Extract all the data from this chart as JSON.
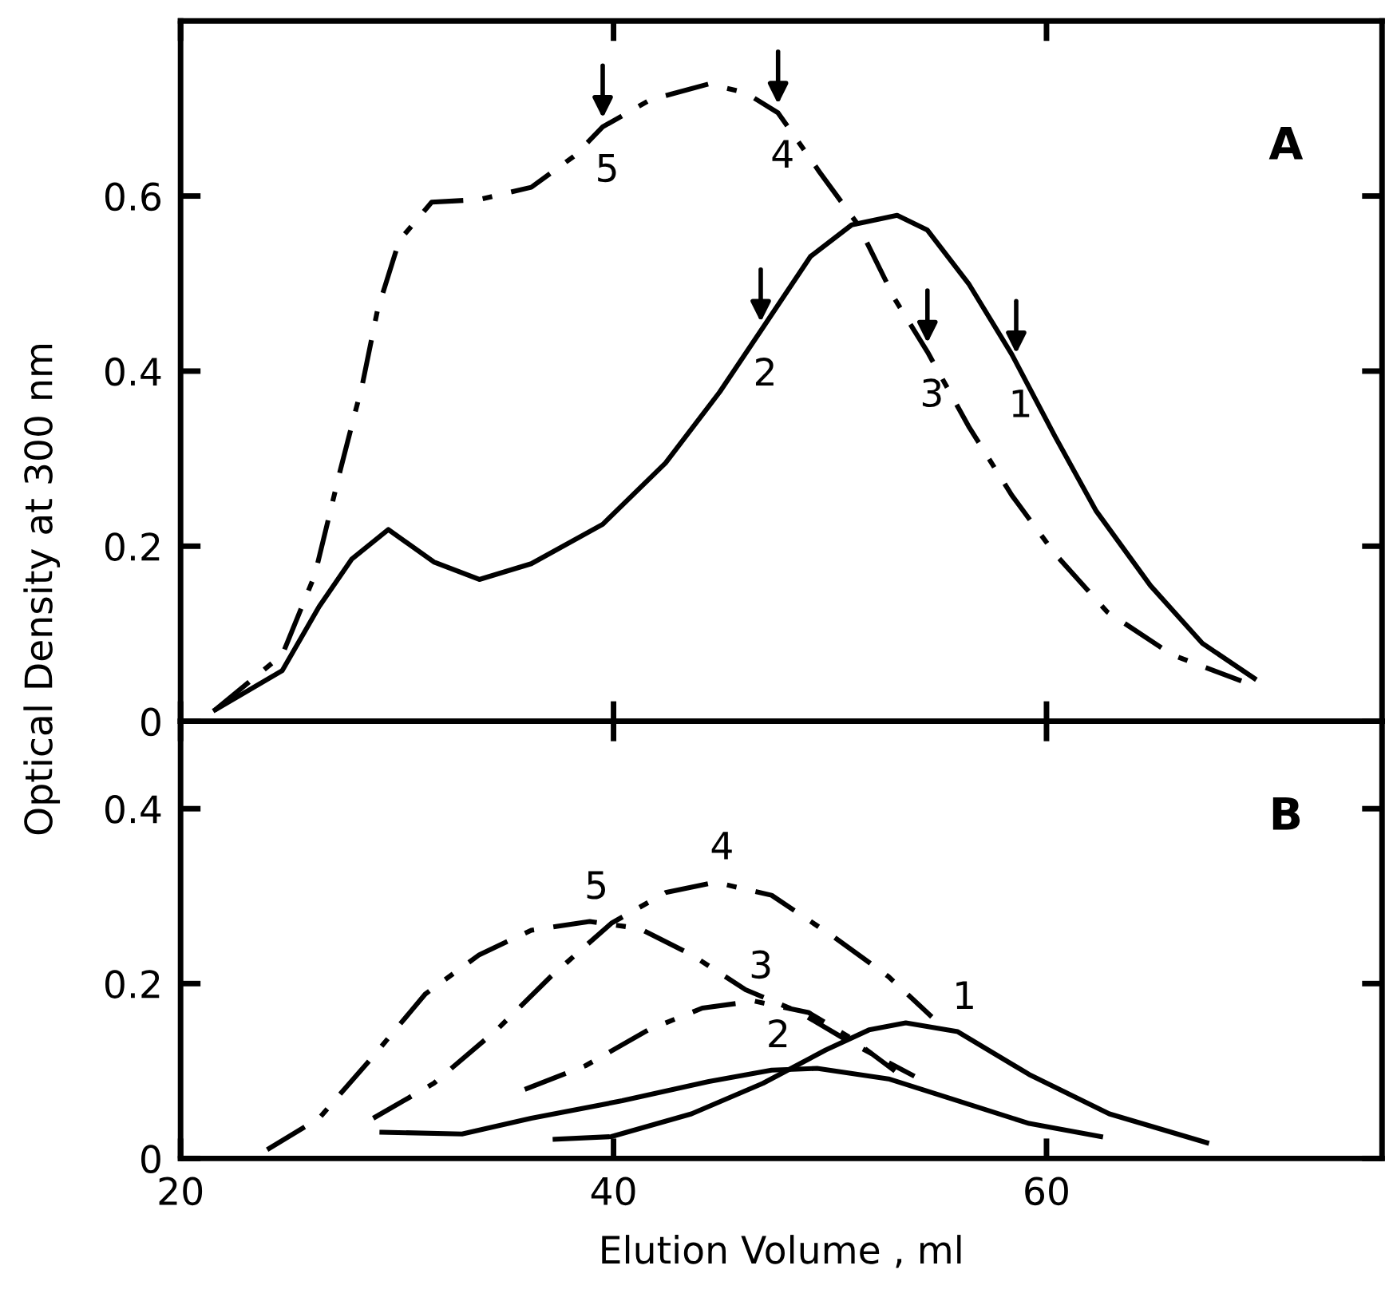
{
  "chart_data": [
    {
      "type": "line",
      "ylabel": "Optical Density at 300 nm",
      "xlim": [
        20,
        75.5
      ],
      "ylim": [
        0,
        0.8
      ],
      "xticks": [
        20,
        40,
        60
      ],
      "yticks": [
        0,
        0.2,
        0.4,
        0.6
      ],
      "tick_labels": "y",
      "grid": false,
      "series": [
        {
          "color": "#000000",
          "line_style": "solid",
          "x": [
            21.6,
            24.7,
            26.4,
            27.9,
            29.6,
            31.7,
            33.8,
            36.2,
            39.5,
            42.4,
            44.9,
            46.8,
            49.1,
            51.0,
            53.1,
            54.5,
            56.4,
            58.4,
            60.4,
            62.3,
            64.8,
            67.2,
            69.6
          ],
          "values": [
            0.013,
            0.058,
            0.131,
            0.185,
            0.219,
            0.182,
            0.162,
            0.18,
            0.225,
            0.295,
            0.376,
            0.446,
            0.531,
            0.567,
            0.578,
            0.561,
            0.5,
            0.419,
            0.325,
            0.24,
            0.155,
            0.089,
            0.049
          ]
        },
        {
          "color": "#000000",
          "line_style": "dashdot",
          "x": [
            21.6,
            24.7,
            26.2,
            27.4,
            28.4,
            29.1,
            30.1,
            31.6,
            33.8,
            36.2,
            38.2,
            39.5,
            41.7,
            44.4,
            46.1,
            47.6,
            49.5,
            51.3,
            53.0,
            54.5,
            56.4,
            58.4,
            60.4,
            62.8,
            65.8,
            69.0
          ],
          "values": [
            0.013,
            0.076,
            0.167,
            0.289,
            0.385,
            0.47,
            0.549,
            0.593,
            0.596,
            0.61,
            0.646,
            0.679,
            0.71,
            0.728,
            0.718,
            0.695,
            0.628,
            0.567,
            0.482,
            0.422,
            0.337,
            0.258,
            0.191,
            0.125,
            0.076,
            0.046
          ]
        }
      ],
      "annotations": [
        "A",
        {
          "text": "5",
          "x": 39.5,
          "y": 0.679
        },
        {
          "text": "4",
          "x": 47.6,
          "y": 0.695
        },
        {
          "text": "2",
          "x": 46.8,
          "y": 0.446
        },
        {
          "text": "3",
          "x": 54.5,
          "y": 0.422
        },
        {
          "text": "1",
          "x": 58.6,
          "y": 0.41
        }
      ]
    },
    {
      "type": "line",
      "xlabel": "Elution Volume , ml",
      "xlim": [
        20,
        75.5
      ],
      "ylim": [
        0,
        0.5
      ],
      "xticks": [
        20,
        40,
        60
      ],
      "yticks": [
        0,
        0.2,
        0.4
      ],
      "grid": false,
      "series": [
        {
          "color": "#000000",
          "line_style": "solid",
          "x": [
            37.3,
            39.9,
            43.6,
            46.9,
            49.8,
            51.8,
            53.5,
            55.9,
            59.2,
            62.9,
            67.4
          ],
          "values": [
            0.022,
            0.025,
            0.051,
            0.086,
            0.124,
            0.147,
            0.155,
            0.145,
            0.096,
            0.051,
            0.018
          ]
        },
        {
          "color": "#000000",
          "line_style": "solid",
          "x": [
            29.3,
            33.0,
            36.2,
            40.4,
            44.4,
            47.3,
            49.4,
            52.7,
            55.9,
            59.2,
            62.5
          ],
          "values": [
            0.03,
            0.028,
            0.046,
            0.066,
            0.088,
            0.101,
            0.103,
            0.091,
            0.066,
            0.04,
            0.025
          ]
        },
        {
          "color": "#000000",
          "line_style": "dashdot",
          "x": [
            35.9,
            38.7,
            41.6,
            44.1,
            46.5,
            49.0,
            51.0,
            53.0
          ],
          "values": [
            0.079,
            0.106,
            0.147,
            0.172,
            0.18,
            0.167,
            0.137,
            0.1
          ]
        },
        {
          "color": "#000000",
          "line_style": "dashdot",
          "x": [
            28.9,
            31.7,
            34.6,
            37.1,
            39.9,
            42.4,
            44.7,
            47.3,
            50.2,
            52.7,
            54.7
          ],
          "values": [
            0.046,
            0.086,
            0.147,
            0.208,
            0.269,
            0.304,
            0.316,
            0.301,
            0.253,
            0.208,
            0.162
          ]
        },
        {
          "color": "#000000",
          "line_style": "dashdot",
          "x": [
            24.0,
            26.4,
            28.9,
            31.3,
            33.8,
            36.2,
            38.9,
            41.2,
            43.6,
            46.1,
            48.6,
            51.0,
            53.9
          ],
          "values": [
            0.01,
            0.046,
            0.117,
            0.188,
            0.233,
            0.261,
            0.271,
            0.263,
            0.233,
            0.193,
            0.167,
            0.132,
            0.094
          ]
        }
      ],
      "annotations": [
        "B",
        {
          "text": "5",
          "x": 38.9,
          "y": 0.271
        },
        {
          "text": "4",
          "x": 44.7,
          "y": 0.316
        },
        {
          "text": "3",
          "x": 46.5,
          "y": 0.18
        },
        {
          "text": "2",
          "x": 47.3,
          "y": 0.101
        },
        {
          "text": "1",
          "x": 55.9,
          "y": 0.145
        }
      ]
    }
  ]
}
